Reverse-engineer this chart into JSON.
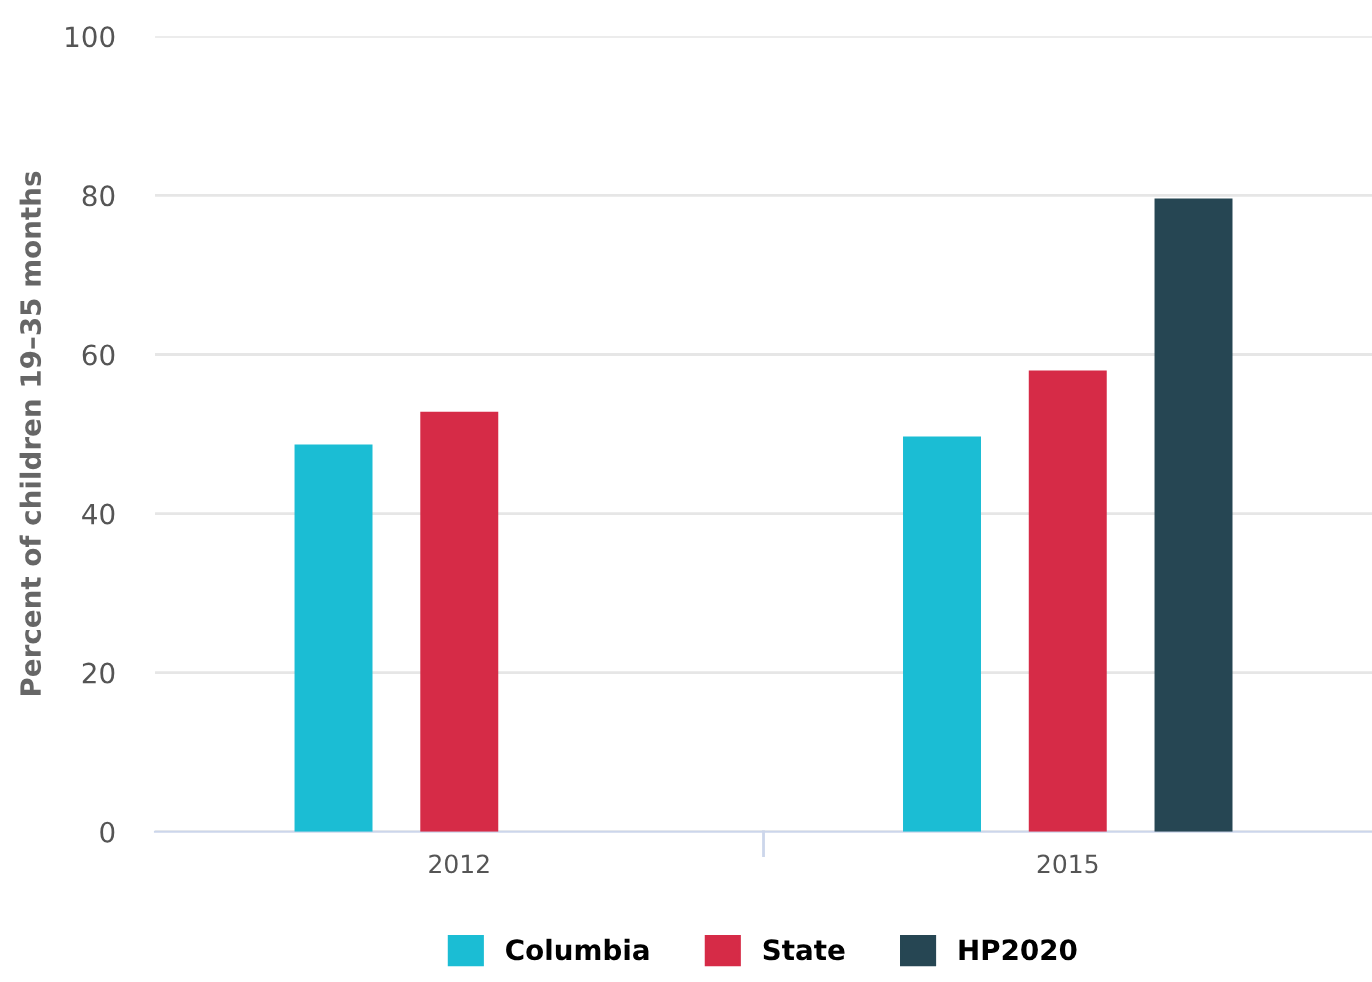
{
  "chart_data": {
    "type": "bar",
    "ylabel": "Percent of children 19–35 months",
    "categories": [
      "2012",
      "2015"
    ],
    "series": [
      {
        "name": "Columbia",
        "color": "#1bbdd4",
        "values": [
          48.7,
          49.7
        ]
      },
      {
        "name": "State",
        "color": "#d62b47",
        "values": [
          52.8,
          58.0
        ]
      },
      {
        "name": "HP2020",
        "color": "#264653",
        "values": [
          null,
          79.6
        ]
      }
    ],
    "ylim": [
      0,
      100
    ],
    "yticks": [
      0,
      20,
      40,
      60,
      80,
      100
    ],
    "grid": "y",
    "legend": "bottom"
  }
}
